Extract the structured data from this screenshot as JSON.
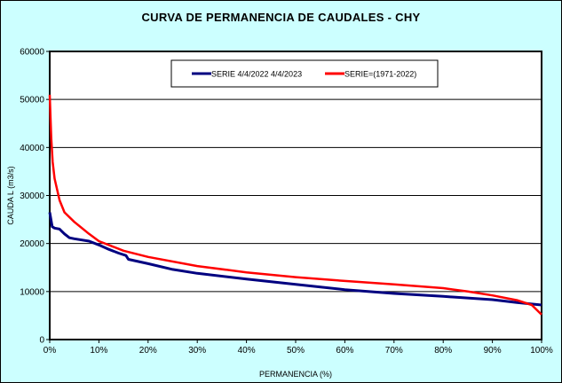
{
  "chart_data": {
    "type": "line",
    "title": "CURVA DE PERMANENCIA DE CAUDALES - CHY",
    "xlabel": "PERMANENCIA (%)",
    "ylabel": "CAUDA L (m3/s)",
    "xlim": [
      0,
      100
    ],
    "ylim": [
      0,
      60000
    ],
    "xticks": [
      "0%",
      "10%",
      "20%",
      "30%",
      "40%",
      "50%",
      "60%",
      "70%",
      "80%",
      "90%",
      "100%"
    ],
    "yticks": [
      "0",
      "10000",
      "20000",
      "30000",
      "40000",
      "50000",
      "60000"
    ],
    "grid": "horizontal",
    "legend_position": "top-center",
    "background": "#ccffff",
    "series": [
      {
        "name": "SERIE 4/4/2022 4/4/2023",
        "color": "#000080",
        "x": [
          0,
          0.5,
          1,
          2,
          3,
          4,
          5,
          8,
          10,
          12,
          14,
          15.5,
          16,
          20,
          25,
          30,
          40,
          50,
          60,
          70,
          80,
          90,
          95,
          100
        ],
        "y": [
          26500,
          23500,
          23200,
          23000,
          22000,
          21200,
          21000,
          20500,
          19700,
          18800,
          18000,
          17500,
          16700,
          15800,
          14600,
          13800,
          12600,
          11500,
          10400,
          9600,
          9000,
          8300,
          7700,
          7200
        ]
      },
      {
        "name": "SERIE=(1971-2022)",
        "color": "#ff0000",
        "x": [
          0,
          0.3,
          0.6,
          1,
          2,
          3,
          5,
          8,
          10,
          15,
          20,
          30,
          40,
          50,
          60,
          70,
          80,
          85,
          90,
          95,
          98,
          100
        ],
        "y": [
          51000,
          42000,
          37000,
          33500,
          29000,
          26500,
          24500,
          22000,
          20500,
          18500,
          17200,
          15300,
          14000,
          13000,
          12200,
          11500,
          10700,
          10000,
          9200,
          8200,
          7200,
          5200
        ]
      }
    ]
  }
}
